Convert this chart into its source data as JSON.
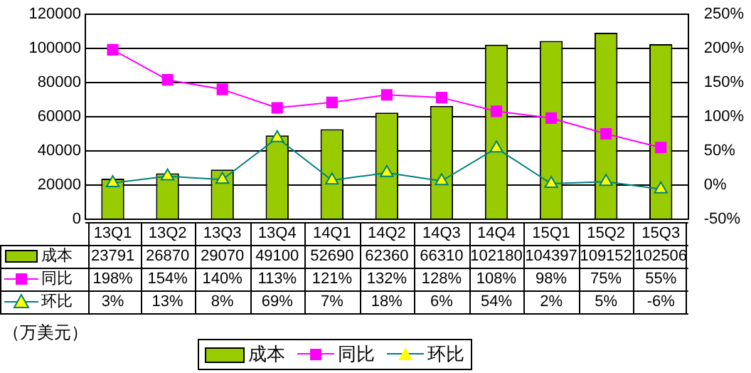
{
  "chart_data": {
    "type": "bar",
    "categories": [
      "13Q1",
      "13Q2",
      "13Q3",
      "13Q4",
      "14Q1",
      "14Q2",
      "14Q3",
      "14Q4",
      "15Q1",
      "15Q2",
      "15Q3"
    ],
    "series": [
      {
        "name": "成本",
        "color": "#99cc00",
        "values": [
          23791,
          26870,
          29070,
          49100,
          52690,
          62360,
          66310,
          102180,
          104397,
          109152,
          102506
        ],
        "value_labels": [
          "23791",
          "26870",
          "29070",
          "49100",
          "52690",
          "62360",
          "66310",
          "102180",
          "104397",
          "109152",
          "102506"
        ]
      },
      {
        "name": "同比",
        "type": "line",
        "axis": "y2",
        "marker": "square",
        "color": "#ff00ff",
        "values": [
          198,
          154,
          140,
          113,
          121,
          132,
          128,
          108,
          98,
          75,
          55
        ],
        "value_labels": [
          "198%",
          "154%",
          "140%",
          "113%",
          "121%",
          "132%",
          "128%",
          "108%",
          "98%",
          "75%",
          "55%"
        ]
      },
      {
        "name": "环比",
        "type": "line",
        "axis": "y2",
        "marker": "triangle",
        "color": "#008080",
        "values": [
          3,
          13,
          8,
          69,
          7,
          18,
          6,
          54,
          2,
          5,
          -6
        ],
        "value_labels": [
          "3%",
          "13%",
          "8%",
          "69%",
          "7%",
          "18%",
          "6%",
          "54%",
          "2%",
          "5%",
          "-6%"
        ]
      }
    ],
    "ylim": [
      0,
      120000
    ],
    "yticks": [
      0,
      20000,
      40000,
      60000,
      80000,
      100000,
      120000
    ],
    "y2lim": [
      -50,
      250
    ],
    "y2ticks": [
      {
        "value": -50,
        "label": "-50%"
      },
      {
        "value": 0,
        "label": "0%"
      },
      {
        "value": 50,
        "label": "50%"
      },
      {
        "value": 100,
        "label": "100%"
      },
      {
        "value": 150,
        "label": "150%"
      },
      {
        "value": 200,
        "label": "200%"
      },
      {
        "value": 250,
        "label": "250%"
      }
    ],
    "grid": "y",
    "legend": "bottom",
    "annotations": [
      "（万美元）"
    ]
  }
}
